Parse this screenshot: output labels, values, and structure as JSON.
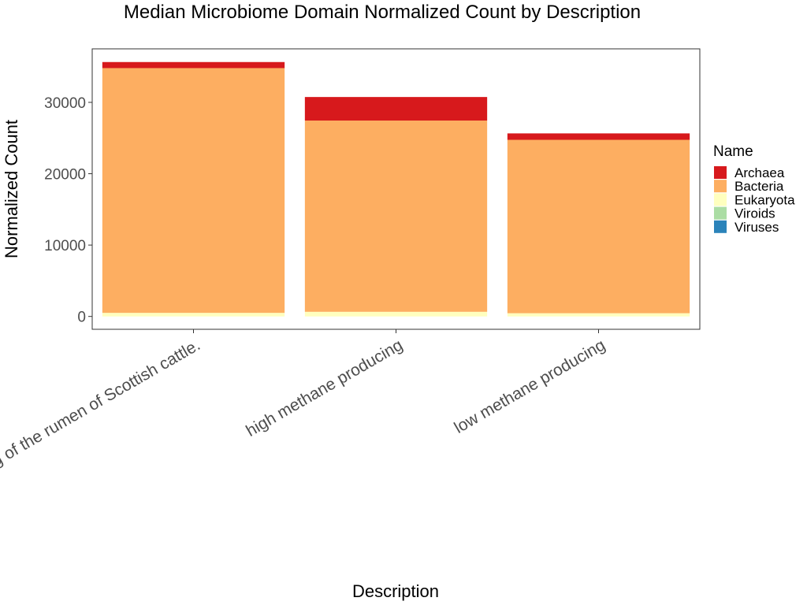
{
  "chart_data": {
    "type": "bar",
    "stacked": true,
    "title": "Median Microbiome Domain Normalized Count by Description",
    "xlabel": "Description",
    "ylabel": "Normalized Count",
    "categories": [
      "Metagenomic sequencing of the rumen of Scottish cattle.",
      "high methane producing",
      "low methane producing"
    ],
    "series": [
      {
        "name": "Viruses",
        "color": "#2B83BA",
        "values": [
          0,
          0,
          0
        ]
      },
      {
        "name": "Viroids",
        "color": "#ABDDA4",
        "values": [
          0,
          0,
          0
        ]
      },
      {
        "name": "Eukaryota",
        "color": "#FFFFBF",
        "values": [
          500,
          650,
          450
        ]
      },
      {
        "name": "Bacteria",
        "color": "#FDAE61",
        "values": [
          34300,
          26800,
          24300
        ]
      },
      {
        "name": "Archaea",
        "color": "#D7191C",
        "values": [
          850,
          3300,
          900
        ]
      }
    ],
    "legend": {
      "title": "Name",
      "position": "right",
      "order": [
        "Archaea",
        "Bacteria",
        "Eukaryota",
        "Viroids",
        "Viruses"
      ]
    },
    "yticks": [
      0,
      10000,
      20000,
      30000
    ],
    "ylim": [
      -1800,
      37500
    ],
    "grid": false
  }
}
